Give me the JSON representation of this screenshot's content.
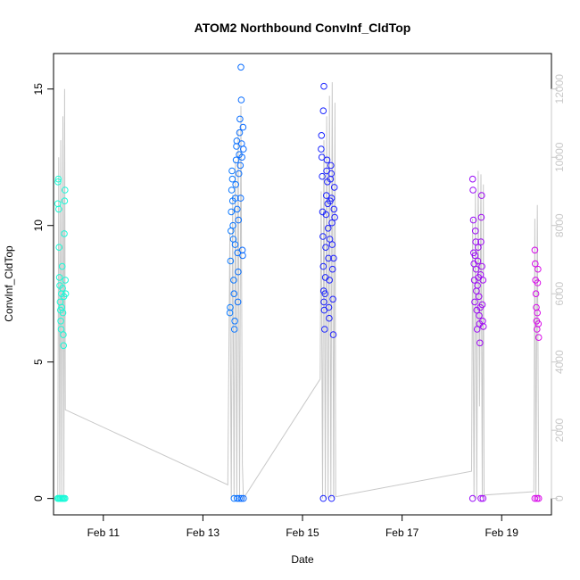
{
  "chart_data": {
    "type": "scatter",
    "title": "ATOM2 Northbound ConvInf_CldTop",
    "xlabel": "Date",
    "ylabel": "ConvInf_CldTop",
    "x_ticks": [
      {
        "date": "2016-02-11",
        "label": "Feb 11"
      },
      {
        "date": "2016-02-13",
        "label": "Feb 13"
      },
      {
        "date": "2016-02-15",
        "label": "Feb 15"
      },
      {
        "date": "2016-02-17",
        "label": "Feb 17"
      },
      {
        "date": "2016-02-19",
        "label": "Feb 19"
      }
    ],
    "xlim": [
      "2016-02-10T00:00",
      "2016-02-19T23:59"
    ],
    "y_ticks": [
      0,
      5,
      10,
      15
    ],
    "ylim": [
      -0.6,
      16.3
    ],
    "y2_ticks": [
      0,
      2000,
      4000,
      6000,
      8000,
      10000,
      12000
    ],
    "y2lim": [
      -480,
      13040
    ],
    "grid": false,
    "legend": "none",
    "point_color_range": [
      "#1AFFD5",
      "#0AB3FF",
      "#0A2AFF",
      "#6A0AFF",
      "#E60AE6"
    ],
    "secondary_line_color": "#c8c8c8",
    "series": [
      {
        "points": [
          [
            "2016-02-10T02:00",
            10.8
          ],
          [
            "2016-02-10T02:10",
            11.6
          ],
          [
            "2016-02-10T02:20",
            11.7
          ],
          [
            "2016-02-10T02:30",
            10.6
          ],
          [
            "2016-02-10T02:40",
            9.2
          ],
          [
            "2016-02-10T02:50",
            8.1
          ],
          [
            "2016-02-10T03:00",
            7.8
          ],
          [
            "2016-02-10T03:10",
            7.2
          ],
          [
            "2016-02-10T03:20",
            6.9
          ],
          [
            "2016-02-10T03:30",
            6.5
          ],
          [
            "2016-02-10T03:40",
            6.2
          ],
          [
            "2016-02-10T03:50",
            7.5
          ],
          [
            "2016-02-10T04:00",
            7.0
          ],
          [
            "2016-02-10T04:10",
            8.5
          ],
          [
            "2016-02-10T04:20",
            7.7
          ],
          [
            "2016-02-10T04:30",
            6.8
          ],
          [
            "2016-02-10T04:40",
            6.0
          ],
          [
            "2016-02-10T04:50",
            5.6
          ],
          [
            "2016-02-10T05:00",
            7.4
          ],
          [
            "2016-02-10T05:10",
            9.7
          ],
          [
            "2016-02-10T05:20",
            10.9
          ],
          [
            "2016-02-10T05:30",
            11.3
          ],
          [
            "2016-02-10T05:40",
            8.0
          ],
          [
            "2016-02-10T05:50",
            7.5
          ],
          [
            "2016-02-10T02:00",
            0
          ],
          [
            "2016-02-10T02:30",
            0
          ],
          [
            "2016-02-10T03:00",
            0
          ],
          [
            "2016-02-10T03:30",
            0
          ],
          [
            "2016-02-10T04:00",
            0
          ],
          [
            "2016-02-10T04:30",
            0
          ],
          [
            "2016-02-10T05:00",
            0
          ],
          [
            "2016-02-10T05:30",
            0
          ]
        ]
      },
      {
        "points": [
          [
            "2016-02-13T13:00",
            6.8
          ],
          [
            "2016-02-13T13:10",
            7.0
          ],
          [
            "2016-02-13T13:20",
            8.7
          ],
          [
            "2016-02-13T13:30",
            9.8
          ],
          [
            "2016-02-13T13:40",
            10.5
          ],
          [
            "2016-02-13T13:50",
            11.3
          ],
          [
            "2016-02-13T14:00",
            12.0
          ],
          [
            "2016-02-13T14:10",
            11.7
          ],
          [
            "2016-02-13T14:20",
            10.9
          ],
          [
            "2016-02-13T14:30",
            10.0
          ],
          [
            "2016-02-13T14:40",
            9.5
          ],
          [
            "2016-02-13T14:50",
            8.0
          ],
          [
            "2016-02-13T15:00",
            7.5
          ],
          [
            "2016-02-13T15:10",
            6.2
          ],
          [
            "2016-02-13T15:20",
            6.5
          ],
          [
            "2016-02-13T15:30",
            9.3
          ],
          [
            "2016-02-13T15:40",
            11.0
          ],
          [
            "2016-02-13T15:50",
            11.5
          ],
          [
            "2016-02-13T16:00",
            12.4
          ],
          [
            "2016-02-13T16:10",
            12.9
          ],
          [
            "2016-02-13T16:20",
            13.1
          ],
          [
            "2016-02-13T16:30",
            10.6
          ],
          [
            "2016-02-13T16:40",
            9.0
          ],
          [
            "2016-02-13T16:50",
            7.2
          ],
          [
            "2016-02-13T17:00",
            8.3
          ],
          [
            "2016-02-13T17:10",
            10.2
          ],
          [
            "2016-02-13T17:20",
            11.9
          ],
          [
            "2016-02-13T17:30",
            12.6
          ],
          [
            "2016-02-13T17:40",
            13.4
          ],
          [
            "2016-02-13T17:50",
            13.9
          ],
          [
            "2016-02-13T18:00",
            12.2
          ],
          [
            "2016-02-13T18:10",
            11.0
          ],
          [
            "2016-02-13T18:20",
            15.8
          ],
          [
            "2016-02-13T18:30",
            14.6
          ],
          [
            "2016-02-13T18:40",
            13.0
          ],
          [
            "2016-02-13T18:50",
            12.5
          ],
          [
            "2016-02-13T19:00",
            9.1
          ],
          [
            "2016-02-13T19:10",
            8.9
          ],
          [
            "2016-02-13T19:20",
            13.6
          ],
          [
            "2016-02-13T19:30",
            12.8
          ],
          [
            "2016-02-13T15:00",
            0
          ],
          [
            "2016-02-13T16:30",
            0
          ],
          [
            "2016-02-13T17:30",
            0
          ],
          [
            "2016-02-13T18:30",
            0
          ],
          [
            "2016-02-13T19:30",
            0
          ]
        ]
      },
      {
        "points": [
          [
            "2016-02-15T09:00",
            12.8
          ],
          [
            "2016-02-15T09:10",
            13.3
          ],
          [
            "2016-02-15T09:20",
            12.5
          ],
          [
            "2016-02-15T09:30",
            11.8
          ],
          [
            "2016-02-15T09:40",
            10.5
          ],
          [
            "2016-02-15T09:50",
            9.6
          ],
          [
            "2016-02-15T10:00",
            8.5
          ],
          [
            "2016-02-15T10:10",
            7.6
          ],
          [
            "2016-02-15T10:20",
            7.2
          ],
          [
            "2016-02-15T10:30",
            6.9
          ],
          [
            "2016-02-15T10:40",
            6.2
          ],
          [
            "2016-02-15T10:50",
            7.5
          ],
          [
            "2016-02-15T11:00",
            8.1
          ],
          [
            "2016-02-15T11:10",
            9.2
          ],
          [
            "2016-02-15T11:20",
            10.4
          ],
          [
            "2016-02-15T11:30",
            11.1
          ],
          [
            "2016-02-15T11:40",
            12.0
          ],
          [
            "2016-02-15T11:50",
            12.4
          ],
          [
            "2016-02-15T12:00",
            11.6
          ],
          [
            "2016-02-15T12:10",
            10.8
          ],
          [
            "2016-02-15T12:20",
            9.9
          ],
          [
            "2016-02-15T12:30",
            8.8
          ],
          [
            "2016-02-15T12:40",
            7.0
          ],
          [
            "2016-02-15T12:50",
            6.6
          ],
          [
            "2016-02-15T13:00",
            8.0
          ],
          [
            "2016-02-15T13:10",
            9.5
          ],
          [
            "2016-02-15T13:20",
            10.9
          ],
          [
            "2016-02-15T13:30",
            11.7
          ],
          [
            "2016-02-15T13:40",
            12.2
          ],
          [
            "2016-02-15T13:50",
            11.9
          ],
          [
            "2016-02-15T14:00",
            11.0
          ],
          [
            "2016-02-15T14:10",
            10.1
          ],
          [
            "2016-02-15T14:20",
            9.3
          ],
          [
            "2016-02-15T14:30",
            8.4
          ],
          [
            "2016-02-15T14:40",
            7.3
          ],
          [
            "2016-02-15T14:50",
            6.0
          ],
          [
            "2016-02-15T15:00",
            8.8
          ],
          [
            "2016-02-15T15:10",
            10.6
          ],
          [
            "2016-02-15T15:20",
            11.4
          ],
          [
            "2016-02-15T15:30",
            10.3
          ],
          [
            "2016-02-15T10:20",
            15.1
          ],
          [
            "2016-02-15T10:00",
            14.2
          ],
          [
            "2016-02-15T10:00",
            0
          ],
          [
            "2016-02-15T14:00",
            0
          ]
        ]
      },
      {
        "points": [
          [
            "2016-02-18T10:00",
            11.7
          ],
          [
            "2016-02-18T10:10",
            11.3
          ],
          [
            "2016-02-18T10:20",
            10.2
          ],
          [
            "2016-02-18T10:30",
            9.0
          ],
          [
            "2016-02-18T10:40",
            8.6
          ],
          [
            "2016-02-18T10:50",
            8.0
          ],
          [
            "2016-02-18T11:00",
            7.2
          ],
          [
            "2016-02-18T11:10",
            8.9
          ],
          [
            "2016-02-18T11:20",
            9.8
          ],
          [
            "2016-02-18T11:30",
            9.4
          ],
          [
            "2016-02-18T11:40",
            8.4
          ],
          [
            "2016-02-18T11:50",
            7.6
          ],
          [
            "2016-02-18T12:00",
            6.9
          ],
          [
            "2016-02-18T12:10",
            6.2
          ],
          [
            "2016-02-18T12:20",
            7.8
          ],
          [
            "2016-02-18T12:30",
            8.7
          ],
          [
            "2016-02-18T12:40",
            9.2
          ],
          [
            "2016-02-18T12:50",
            8.1
          ],
          [
            "2016-02-18T13:00",
            7.4
          ],
          [
            "2016-02-18T13:10",
            6.7
          ],
          [
            "2016-02-18T13:20",
            6.4
          ],
          [
            "2016-02-18T13:30",
            5.7
          ],
          [
            "2016-02-18T13:40",
            7.0
          ],
          [
            "2016-02-18T13:50",
            8.2
          ],
          [
            "2016-02-18T14:00",
            9.4
          ],
          [
            "2016-02-18T14:10",
            10.3
          ],
          [
            "2016-02-18T14:20",
            11.1
          ],
          [
            "2016-02-18T14:30",
            8.5
          ],
          [
            "2016-02-18T14:40",
            7.1
          ],
          [
            "2016-02-18T14:50",
            6.5
          ],
          [
            "2016-02-18T15:00",
            8.0
          ],
          [
            "2016-02-18T15:10",
            6.3
          ],
          [
            "2016-02-18T10:00",
            0
          ],
          [
            "2016-02-18T14:00",
            0
          ],
          [
            "2016-02-18T15:00",
            0
          ]
        ]
      },
      {
        "points": [
          [
            "2016-02-19T16:00",
            9.1
          ],
          [
            "2016-02-19T16:10",
            8.6
          ],
          [
            "2016-02-19T16:20",
            8.0
          ],
          [
            "2016-02-19T16:30",
            7.5
          ],
          [
            "2016-02-19T16:40",
            7.0
          ],
          [
            "2016-02-19T16:50",
            6.5
          ],
          [
            "2016-02-19T17:00",
            6.2
          ],
          [
            "2016-02-19T17:10",
            6.8
          ],
          [
            "2016-02-19T17:20",
            7.9
          ],
          [
            "2016-02-19T17:30",
            8.4
          ],
          [
            "2016-02-19T17:40",
            6.4
          ],
          [
            "2016-02-19T17:50",
            5.9
          ],
          [
            "2016-02-19T16:00",
            0
          ],
          [
            "2016-02-19T17:00",
            0
          ],
          [
            "2016-02-19T17:50",
            0
          ]
        ]
      }
    ],
    "secondary_series": {
      "points": [
        [
          "2016-02-10T02:00",
          0
        ],
        [
          "2016-02-10T02:30",
          10000
        ],
        [
          "2016-02-10T03:00",
          0
        ],
        [
          "2016-02-10T03:30",
          10500
        ],
        [
          "2016-02-10T04:00",
          0
        ],
        [
          "2016-02-10T04:30",
          11200
        ],
        [
          "2016-02-10T05:00",
          0
        ],
        [
          "2016-02-10T05:20",
          12000
        ],
        [
          "2016-02-10T05:40",
          2600
        ],
        [
          "2016-02-13T12:00",
          400
        ],
        [
          "2016-02-13T13:00",
          7800
        ],
        [
          "2016-02-13T13:40",
          0
        ],
        [
          "2016-02-13T14:20",
          8900
        ],
        [
          "2016-02-13T15:00",
          0
        ],
        [
          "2016-02-13T15:40",
          9900
        ],
        [
          "2016-02-13T16:20",
          0
        ],
        [
          "2016-02-13T17:00",
          10800
        ],
        [
          "2016-02-13T17:40",
          0
        ],
        [
          "2016-02-13T18:20",
          11500
        ],
        [
          "2016-02-13T19:00",
          1000
        ],
        [
          "2016-02-13T19:30",
          0
        ],
        [
          "2016-02-15T08:30",
          3500
        ],
        [
          "2016-02-15T09:00",
          9000
        ],
        [
          "2016-02-15T09:40",
          0
        ],
        [
          "2016-02-15T10:20",
          10500
        ],
        [
          "2016-02-15T11:00",
          0
        ],
        [
          "2016-02-15T11:40",
          11200
        ],
        [
          "2016-02-15T12:20",
          0
        ],
        [
          "2016-02-15T13:00",
          11800
        ],
        [
          "2016-02-15T13:40",
          0
        ],
        [
          "2016-02-15T14:20",
          12200
        ],
        [
          "2016-02-15T15:00",
          0
        ],
        [
          "2016-02-15T15:40",
          11600
        ],
        [
          "2016-02-15T16:00",
          50
        ],
        [
          "2016-02-18T09:30",
          800
        ],
        [
          "2016-02-18T10:00",
          8200
        ],
        [
          "2016-02-18T10:40",
          0
        ],
        [
          "2016-02-18T11:20",
          9000
        ],
        [
          "2016-02-18T12:00",
          0
        ],
        [
          "2016-02-18T12:40",
          9600
        ],
        [
          "2016-02-18T13:20",
          2700
        ],
        [
          "2016-02-18T14:00",
          9500
        ],
        [
          "2016-02-18T14:40",
          0
        ],
        [
          "2016-02-18T15:10",
          9200
        ],
        [
          "2016-02-18T15:30",
          100
        ],
        [
          "2016-02-19T15:30",
          200
        ],
        [
          "2016-02-19T16:00",
          8200
        ],
        [
          "2016-02-19T16:30",
          0
        ],
        [
          "2016-02-19T17:10",
          8600
        ],
        [
          "2016-02-19T17:50",
          0
        ]
      ]
    }
  }
}
